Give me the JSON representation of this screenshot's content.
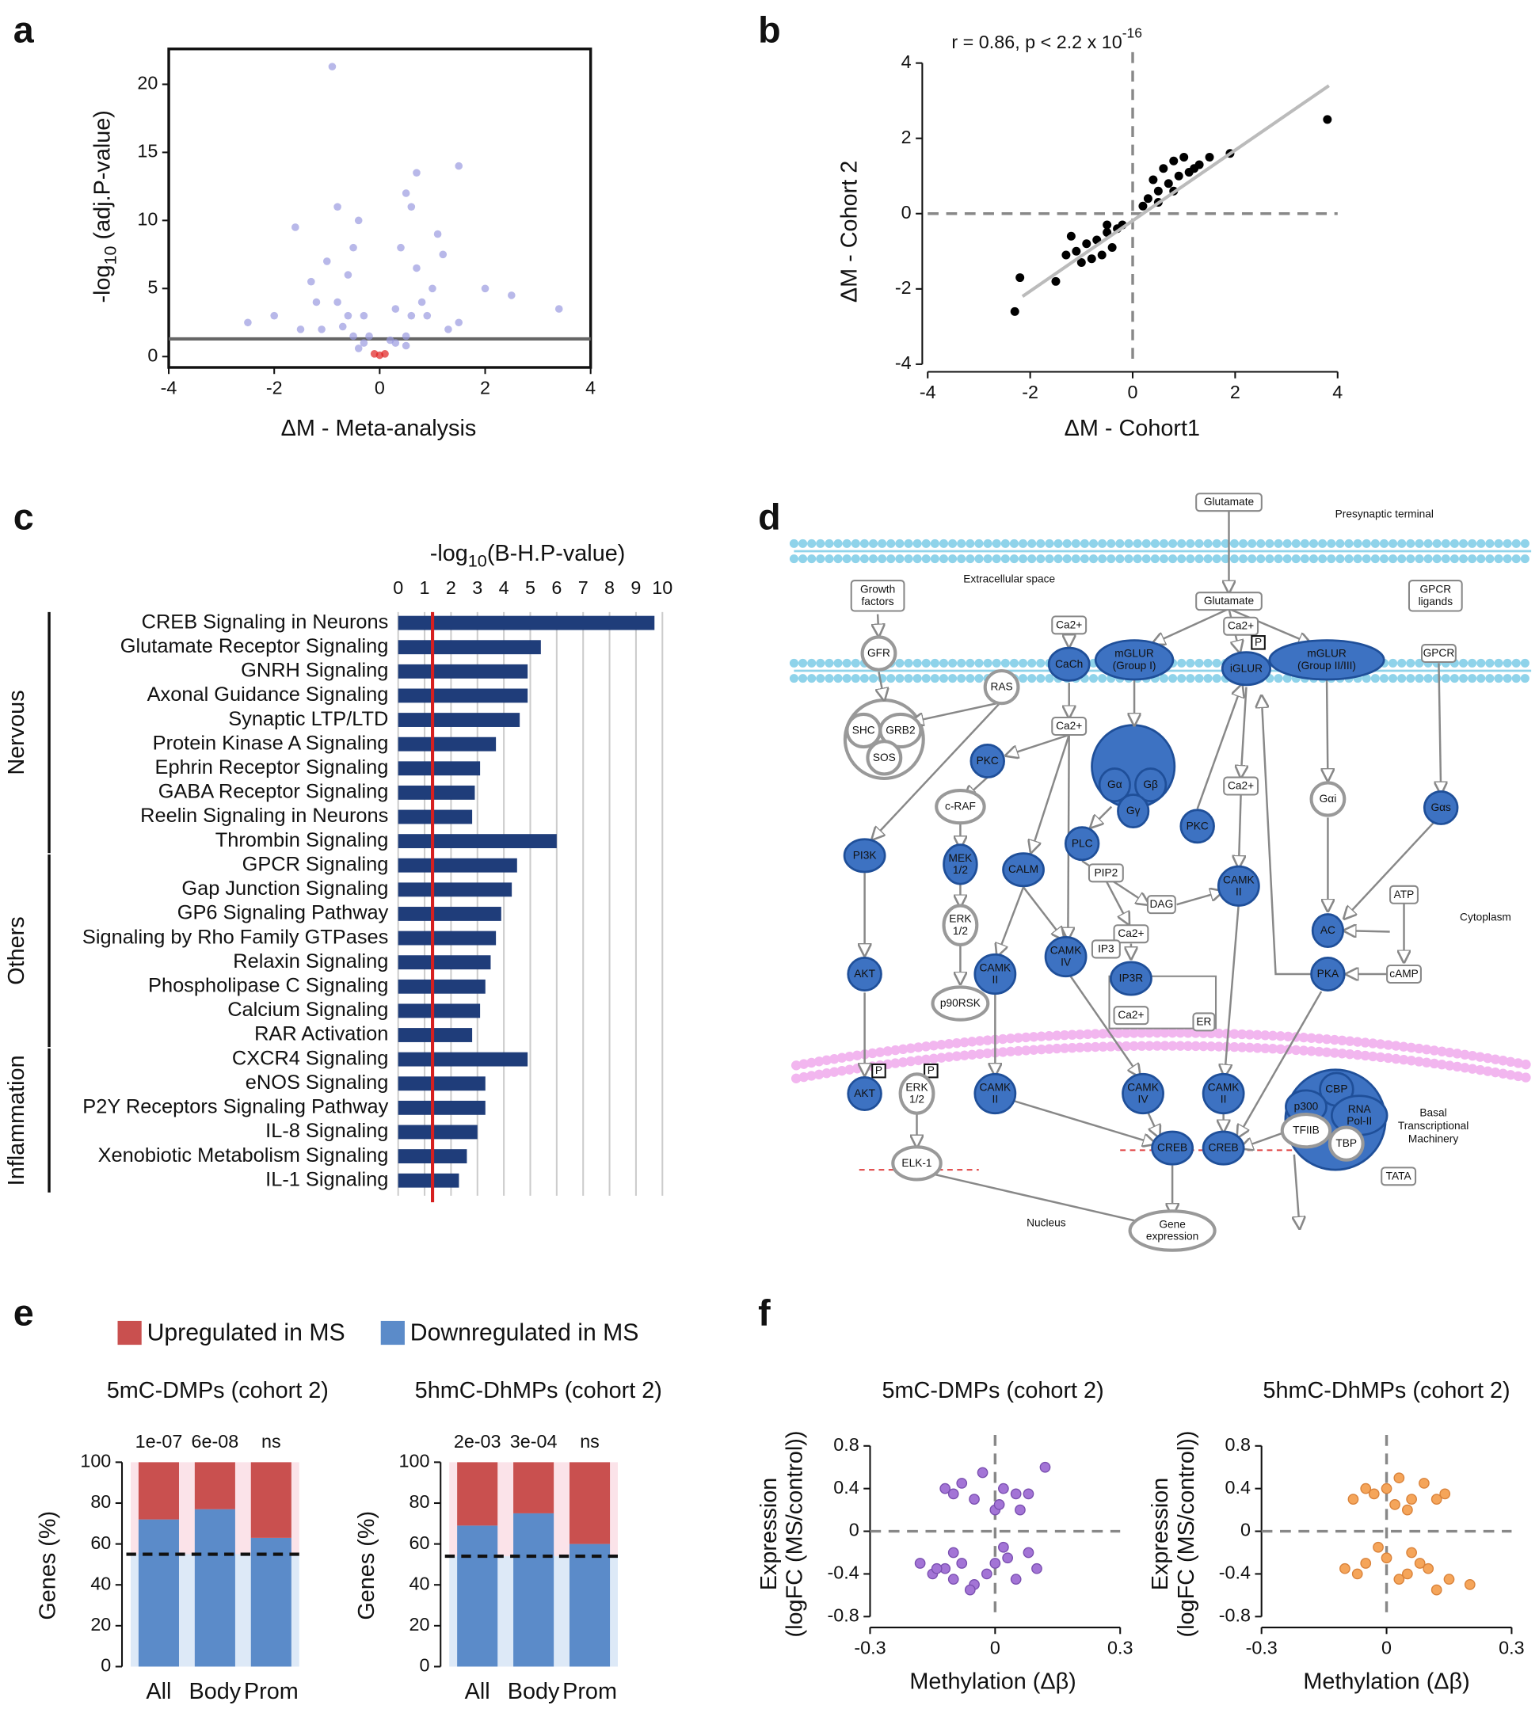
{
  "panel_labels": [
    "a",
    "b",
    "c",
    "d",
    "e",
    "f"
  ],
  "chart_data": [
    {
      "type": "scatter",
      "xlabel": "ΔM - Meta-analysis",
      "ylabel": [
        "-log",
        "10",
        " (adj.P-value)"
      ],
      "xlim": [
        -4,
        4
      ],
      "ylim": [
        -0.8,
        22.6
      ],
      "xticks": [
        -4,
        -2,
        0,
        2,
        4
      ],
      "yticks": [
        0,
        5,
        10,
        15,
        20
      ],
      "hline": 1.3,
      "series": [
        {
          "color": "#9a9ae0",
          "x": [
            -0.9,
            1.5,
            0.7,
            -1.6,
            -0.8,
            0.6,
            -0.5,
            0.4,
            -0.6,
            0.7,
            1.0,
            -1.2,
            -0.3,
            0.3,
            -2.5,
            2.5,
            3.4,
            -1.5,
            1.5,
            -0.2,
            0.2,
            -0.4,
            0.5,
            -0.7,
            0.9,
            -1.0,
            1.1,
            -0.4,
            0.5,
            1.2,
            -1.3,
            2.0,
            -2.0,
            -0.8,
            0.8,
            -0.6,
            0.6,
            -1.1,
            1.3,
            -0.3,
            0.3,
            -0.5,
            0.5
          ],
          "values": [
            21.3,
            14,
            13.5,
            9.5,
            11,
            11,
            8,
            8,
            6,
            6.5,
            5,
            4,
            3,
            3.5,
            2.5,
            4.5,
            3.5,
            2,
            2.5,
            1.5,
            1.2,
            0.6,
            0.8,
            2.2,
            3,
            7,
            9,
            10,
            12,
            7.5,
            5.5,
            5,
            3,
            4,
            4,
            3,
            3,
            2,
            2,
            1,
            1,
            1.5,
            1.5
          ]
        },
        {
          "color": "#e02020",
          "x": [
            -0.1,
            0,
            0.1
          ],
          "values": [
            0.2,
            0.1,
            0.2
          ]
        }
      ]
    },
    {
      "type": "scatter",
      "xlabel": "ΔM - Cohort1",
      "ylabel": "ΔM - Cohort 2",
      "annotation": [
        "r = 0.86, p < 2.2 x 10",
        "-16"
      ],
      "xlim": [
        -4,
        4
      ],
      "ylim": [
        -4,
        4
      ],
      "xticks": [
        -4,
        -2,
        0,
        2,
        4
      ],
      "yticks": [
        -4,
        -2,
        0,
        2,
        4
      ],
      "hline": 0,
      "vline": 0,
      "fit_line": {
        "x": [
          -2.15,
          3.83
        ],
        "y": [
          -2.2,
          3.4
        ]
      },
      "series": [
        {
          "color": "#000000",
          "x": [
            0.3,
            0.5,
            0.7,
            0.9,
            1.1,
            1.3,
            0.4,
            0.6,
            0.8,
            1.0,
            1.2,
            0.2,
            0.5,
            0.8,
            1.5,
            1.9,
            3.8,
            -0.3,
            -0.5,
            -0.7,
            -0.9,
            -1.1,
            -1.3,
            -0.4,
            -0.6,
            -0.8,
            -1.0,
            -0.2,
            -0.5,
            -1.5,
            -2.3,
            -2.2,
            -1.2
          ],
          "values": [
            0.4,
            0.6,
            0.8,
            1.0,
            1.1,
            1.3,
            0.9,
            1.2,
            1.4,
            1.5,
            1.2,
            0.2,
            0.3,
            0.6,
            1.5,
            1.6,
            2.5,
            -0.4,
            -0.5,
            -0.7,
            -0.8,
            -1.0,
            -1.1,
            -0.9,
            -1.1,
            -1.2,
            -1.3,
            -0.3,
            -0.3,
            -1.8,
            -2.6,
            -1.7,
            -0.6
          ]
        }
      ]
    },
    {
      "type": "hbar",
      "title": [
        "-log",
        "10",
        "(B-H.P-value)"
      ],
      "xlim": [
        0,
        10
      ],
      "xticks": [
        0,
        1,
        2,
        3,
        4,
        5,
        6,
        7,
        8,
        9,
        10
      ],
      "grid": true,
      "color": "#1f3d7a",
      "threshold": 1.3,
      "threshold_color": "#d62020",
      "groups": [
        {
          "name": "Nervous",
          "categories": [
            "CREB Signaling in Neurons",
            "Glutamate Receptor Signaling",
            "GNRH Signaling",
            "Axonal Guidance Signaling",
            "Synaptic LTP/LTD",
            "Protein Kinase A Signaling",
            "Ephrin Receptor Signaling",
            "GABA Receptor Signaling",
            "Reelin Signaling in Neurons",
            "Thrombin Signaling"
          ],
          "values": [
            9.7,
            5.4,
            4.9,
            4.9,
            4.6,
            3.7,
            3.1,
            2.9,
            2.8,
            6.0
          ]
        },
        {
          "name": "Others",
          "categories": [
            "GPCR Signaling",
            "Gap Junction Signaling",
            "GP6 Signaling Pathway",
            "Signaling by Rho Family GTPases",
            "Relaxin Signaling",
            "Phospholipase C Signaling",
            "Calcium Signaling",
            "RAR Activation"
          ],
          "values": [
            4.5,
            4.3,
            3.9,
            3.7,
            3.5,
            3.3,
            3.1,
            2.8
          ]
        },
        {
          "name": "Inflammation",
          "categories": [
            "CXCR4 Signaling",
            "eNOS Signaling",
            "P2Y Receptors Signaling Pathway",
            "IL-8 Signaling",
            "Xenobiotic Metabolism Signaling",
            "IL-1 Signaling"
          ],
          "values": [
            4.9,
            3.3,
            3.3,
            3.0,
            2.6,
            2.3
          ]
        }
      ]
    },
    {
      "type": "stacked_bar",
      "title": "5mC-DMPs (cohort 2)",
      "ylabel": "Genes (%)",
      "categories": [
        "All",
        "Body",
        "Prom"
      ],
      "p_labels": [
        "1e-07",
        "6e-08",
        "ns"
      ],
      "baseline": 55,
      "ylim": [
        0,
        100
      ],
      "yticks": [
        0,
        20,
        40,
        60,
        80,
        100
      ],
      "series": [
        {
          "name": "Downregulated in MS",
          "color": "#5b8bc9",
          "values": [
            72,
            77,
            63
          ]
        },
        {
          "name": "Upregulated in MS",
          "color": "#c9504f",
          "values": [
            28,
            23,
            37
          ]
        }
      ]
    },
    {
      "type": "stacked_bar",
      "title": "5hmC-DhMPs (cohort 2)",
      "ylabel": "Genes (%)",
      "categories": [
        "All",
        "Body",
        "Prom"
      ],
      "p_labels": [
        "2e-03",
        "3e-04",
        "ns"
      ],
      "baseline": 54,
      "ylim": [
        0,
        100
      ],
      "yticks": [
        0,
        20,
        40,
        60,
        80,
        100
      ],
      "series": [
        {
          "color": "#5b8bc9",
          "values": [
            69,
            75,
            60
          ]
        },
        {
          "color": "#c9504f",
          "values": [
            31,
            25,
            40
          ]
        }
      ]
    },
    {
      "type": "scatter",
      "title": "5mC-DMPs (cohort 2)",
      "xlabel": "Methylation (Δβ)",
      "ylabel": [
        "Expression",
        "(logFC (MS/control))"
      ],
      "xlim": [
        -0.3,
        0.3
      ],
      "ylim": [
        -0.8,
        0.8
      ],
      "xticks": [
        -0.3,
        0,
        0.3
      ],
      "yticks": [
        -0.8,
        -0.4,
        0,
        0.4,
        0.8
      ],
      "hline": 0,
      "vline": 0,
      "series": [
        {
          "color": "#a374d6",
          "x": [
            -0.1,
            -0.05,
            0,
            0.02,
            -0.08,
            0.05,
            0.08,
            0.12,
            -0.03,
            0.01,
            -0.12,
            0.06,
            -0.18,
            -0.15,
            -0.12,
            -0.1,
            -0.08,
            -0.05,
            -0.02,
            0,
            0.03,
            0.05,
            0.08,
            0.1,
            -0.06,
            -0.1,
            0.02,
            -0.14
          ],
          "values": [
            0.35,
            0.3,
            0.2,
            0.4,
            0.45,
            0.35,
            0.35,
            0.6,
            0.55,
            0.25,
            0.4,
            0.2,
            -0.3,
            -0.4,
            -0.35,
            -0.45,
            -0.3,
            -0.5,
            -0.4,
            -0.3,
            -0.25,
            -0.45,
            -0.2,
            -0.35,
            -0.55,
            -0.2,
            -0.15,
            -0.35
          ]
        }
      ]
    },
    {
      "type": "scatter",
      "title": "5hmC-DhMPs (cohort 2)",
      "xlabel": "Methylation (Δβ)",
      "ylabel": [
        "Expression",
        "(logFC (MS/control))"
      ],
      "xlim": [
        -0.3,
        0.3
      ],
      "ylim": [
        -0.8,
        0.8
      ],
      "xticks": [
        -0.3,
        0,
        0.3
      ],
      "yticks": [
        -0.8,
        -0.4,
        0,
        0.4,
        0.8
      ],
      "hline": 0,
      "vline": 0,
      "series": [
        {
          "color": "#f5a55a",
          "x": [
            -0.08,
            -0.03,
            0,
            0.03,
            0.06,
            0.09,
            0.12,
            0.14,
            0.02,
            -0.05,
            0.05,
            -0.1,
            -0.05,
            0,
            0.05,
            0.1,
            0.15,
            0.2,
            -0.02,
            0.08,
            0.12,
            0.03,
            -0.07,
            0.06
          ],
          "values": [
            0.3,
            0.35,
            0.4,
            0.5,
            0.3,
            0.45,
            0.3,
            0.35,
            0.25,
            0.4,
            0.2,
            -0.35,
            -0.3,
            -0.25,
            -0.4,
            -0.35,
            -0.45,
            -0.5,
            -0.15,
            -0.3,
            -0.55,
            -0.45,
            -0.4,
            -0.2
          ]
        }
      ]
    }
  ],
  "diagram": {
    "labels": [
      [
        "Glutamate"
      ],
      [
        "Presynaptic terminal"
      ],
      [
        "Extracellular space"
      ],
      [
        "Growth",
        "factors"
      ],
      [
        "Glutamate"
      ],
      [
        "GPCR",
        "ligands"
      ],
      [
        "Ca2+"
      ],
      [
        "Ca2+"
      ],
      [
        "P"
      ],
      [
        "GFR"
      ],
      [
        "CaCh"
      ],
      [
        "mGLUR",
        "(Group I)"
      ],
      [
        "iGLUR"
      ],
      [
        "mGLUR",
        "(Group II/III)"
      ],
      [
        "GPCR"
      ],
      [
        "RAS"
      ],
      [
        "SHC"
      ],
      [
        "GRB2"
      ],
      [
        "SOS"
      ],
      [
        "Ca2+"
      ],
      [
        "PKC"
      ],
      [
        "Gα"
      ],
      [
        "Gβ"
      ],
      [
        "Gγ"
      ],
      [
        "Ca2+"
      ],
      [
        "Gαi"
      ],
      [
        "Gαs"
      ],
      [
        "c-RAF"
      ],
      [
        "PLC"
      ],
      [
        "PKC"
      ],
      [
        "PI3K"
      ],
      [
        "MEK",
        "1/2"
      ],
      [
        "CALM"
      ],
      [
        "PIP2"
      ],
      [
        "DAG"
      ],
      [
        "CAMK",
        "II"
      ],
      [
        "ATP"
      ],
      [
        "AC"
      ],
      [
        "Cytoplasm"
      ],
      [
        "ERK",
        "1/2"
      ],
      [
        "Ca2+"
      ],
      [
        "IP3"
      ],
      [
        "CAMK",
        "IV"
      ],
      [
        "AKT"
      ],
      [
        "CAMK",
        "II"
      ],
      [
        "IP3R"
      ],
      [
        "PKA"
      ],
      [
        "cAMP"
      ],
      [
        "p90RSK"
      ],
      [
        "Ca2+"
      ],
      [
        "ER"
      ],
      [
        "P"
      ],
      [
        "P"
      ],
      [
        "AKT"
      ],
      [
        "ERK",
        "1/2"
      ],
      [
        "CAMK",
        "II"
      ],
      [
        "CAMK",
        "IV"
      ],
      [
        "CAMK",
        "II"
      ],
      [
        "CBP"
      ],
      [
        "p300"
      ],
      [
        "RNA",
        "Pol-II"
      ],
      [
        "TFIIB"
      ],
      [
        "TBP"
      ],
      [
        "Basal",
        "Transcriptional",
        "Machinery"
      ],
      [
        "CREB"
      ],
      [
        "CREB"
      ],
      [
        "TATA"
      ],
      [
        "ELK-1"
      ],
      [
        "Nucleus"
      ],
      [
        "Gene",
        "expression"
      ]
    ]
  }
}
